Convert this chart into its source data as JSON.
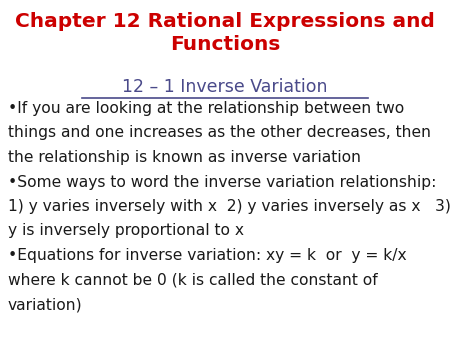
{
  "title_line1": "Chapter 12 Rational Expressions and",
  "title_line2": "Functions",
  "title_color": "#cc0000",
  "subtitle": "12 – 1 Inverse Variation",
  "subtitle_color": "#4a4a8a",
  "body_color": "#1a1a1a",
  "background_color": "#ffffff",
  "body_lines": [
    "•If you are looking at the relationship between two",
    "things and one increases as the other decreases, then",
    "the relationship is known as inverse variation",
    "•Some ways to word the inverse variation relationship:",
    "1) y varies inversely with x  2) y varies inversely as x   3)",
    "y is inversely proportional to x",
    "•Equations for inverse variation: xy = k  or  y = k/x",
    "where k cannot be 0 (k is called the constant of",
    "variation)"
  ],
  "title_fontsize": 14.5,
  "subtitle_fontsize": 12.5,
  "body_fontsize": 11.2,
  "fig_width": 4.5,
  "fig_height": 3.38,
  "dpi": 100
}
